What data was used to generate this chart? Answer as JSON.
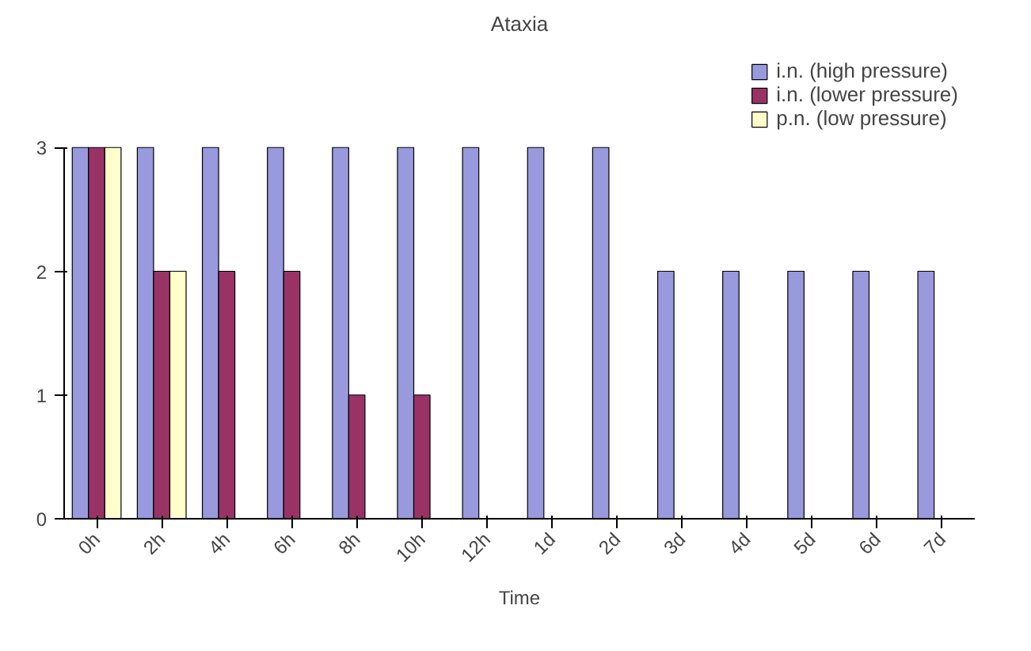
{
  "chart_data": {
    "type": "bar",
    "title": "Ataxia",
    "xlabel": "Time",
    "categories": [
      "0h",
      "2h",
      "4h",
      "6h",
      "8h",
      "10h",
      "12h",
      "1d",
      "2d",
      "3d",
      "4d",
      "5d",
      "6d",
      "7d"
    ],
    "series": [
      {
        "name": "i.n. (high pressure)",
        "color": "#9999dd",
        "values": [
          3,
          3,
          3,
          3,
          3,
          3,
          3,
          3,
          3,
          2,
          2,
          2,
          2,
          2
        ]
      },
      {
        "name": "i.n. (lower pressure)",
        "color": "#993366",
        "values": [
          3,
          2,
          2,
          2,
          1,
          1,
          null,
          null,
          null,
          null,
          null,
          null,
          null,
          null
        ]
      },
      {
        "name": "p.n. (low pressure)",
        "color": "#ffffcc",
        "values": [
          3,
          2,
          null,
          null,
          null,
          null,
          null,
          null,
          null,
          null,
          null,
          null,
          null,
          null
        ]
      }
    ],
    "ylim": [
      0,
      3
    ],
    "yticks": [
      0,
      1,
      2,
      3
    ],
    "grid": false,
    "legend": "top right"
  }
}
